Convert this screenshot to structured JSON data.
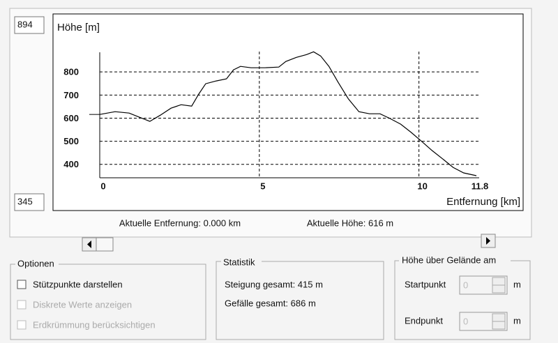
{
  "chart_data": {
    "type": "line",
    "y_label": "Höhe [m]",
    "x_label": "Entfernung [km]",
    "x": [
      0,
      0.48,
      0.92,
      1.24,
      1.57,
      1.9,
      2.23,
      2.55,
      2.88,
      3.1,
      3.32,
      3.65,
      3.97,
      4.19,
      4.41,
      4.74,
      5.17,
      5.61,
      5.83,
      6.16,
      6.48,
      6.7,
      6.92,
      7.18,
      7.47,
      7.79,
      8.12,
      8.45,
      8.78,
      9.1,
      9.43,
      9.76,
      10.09,
      10.41,
      10.74,
      11.07,
      11.4,
      11.8
    ],
    "series": [
      {
        "color": "#000000",
        "values": [
          616,
          628,
          622,
          604,
          586,
          613,
          643,
          658,
          652,
          704,
          749,
          761,
          770,
          809,
          824,
          818,
          818,
          821,
          845,
          863,
          875,
          887,
          869,
          824,
          755,
          683,
          628,
          619,
          619,
          598,
          574,
          538,
          499,
          460,
          424,
          387,
          363,
          351
        ]
      }
    ],
    "xlim": [
      0,
      11.8
    ],
    "ylim": [
      345,
      894
    ],
    "xticks": [
      0,
      5,
      10,
      11.8
    ],
    "yticks": [
      400,
      500,
      600,
      700,
      800
    ],
    "grid": true
  },
  "status": {
    "distance": "Aktuelle Entfernung: 0.000 km",
    "height": "Aktuelle Höhe: 616 m"
  },
  "options": {
    "title": "Optionen",
    "items": [
      {
        "label": "Stützpunkte darstellen",
        "enabled": true
      },
      {
        "label": "Diskrete Werte anzeigen",
        "enabled": false
      },
      {
        "label": "Erdkrümmung berücksichtigen",
        "enabled": false
      }
    ]
  },
  "statistics": {
    "title": "Statistik",
    "lines": [
      "Steigung gesamt: 415 m",
      "Gefälle gesamt: 686 m"
    ]
  },
  "height_above": {
    "title": "Höhe über Gelände am",
    "fields": [
      {
        "label": "Startpunkt",
        "value": "0",
        "unit": "m"
      },
      {
        "label": "Endpunkt",
        "value": "0",
        "unit": "m"
      }
    ]
  }
}
